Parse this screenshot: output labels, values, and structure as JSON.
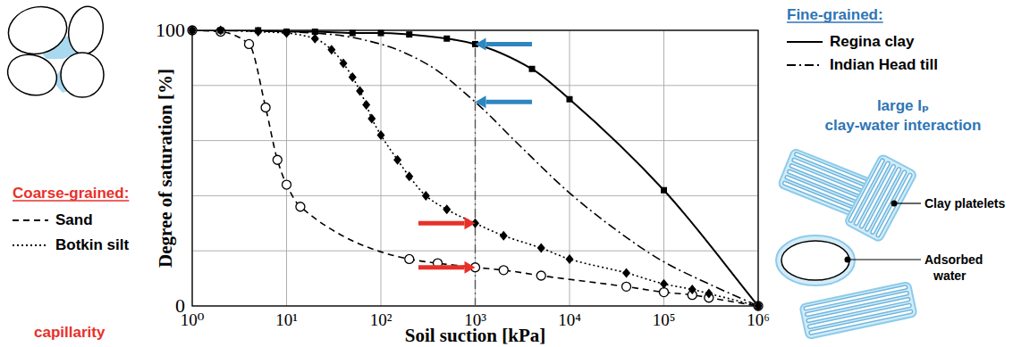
{
  "chart_data": {
    "type": "line",
    "x_label": "Soil suction [kPa]",
    "y_label": "Degree of saturation [%]",
    "log": "x",
    "grid": true,
    "xlim": [
      1,
      1000000
    ],
    "ylim": [
      0,
      100
    ],
    "xticks": [
      {
        "value": 1,
        "label": "10⁰"
      },
      {
        "value": 10,
        "label": "10¹"
      },
      {
        "value": 100,
        "label": "10²"
      },
      {
        "value": 1000,
        "label": "10³"
      },
      {
        "value": 10000,
        "label": "10⁴"
      },
      {
        "value": 100000,
        "label": "10⁵"
      },
      {
        "value": 1000000,
        "label": "10⁶"
      }
    ],
    "yticks": [
      0,
      {
        "value": 20,
        "label": null
      },
      {
        "value": 40,
        "label": null
      },
      {
        "value": 60,
        "label": null
      },
      {
        "value": 80,
        "label": null
      },
      100
    ],
    "series": [
      {
        "name": "Sand",
        "color": "#000000",
        "line_style": "dashed",
        "marker": "circle-open",
        "x": [
          1,
          2,
          4,
          6,
          8,
          10,
          14,
          200,
          400,
          1000,
          2000,
          5000,
          40000,
          100000,
          200000,
          300000,
          1000000
        ],
        "values": [
          100,
          99.5,
          95,
          72,
          53,
          44,
          36,
          17,
          15.5,
          14,
          13,
          11,
          7,
          5,
          4,
          3,
          0
        ]
      },
      {
        "name": "Botkin silt",
        "color": "#000000",
        "line_style": "dotted",
        "marker": "diamond",
        "x": [
          1,
          2,
          5,
          10,
          20,
          30,
          40,
          50,
          60,
          70,
          80,
          100,
          150,
          200,
          300,
          500,
          1000,
          2000,
          5000,
          10000,
          40000,
          100000,
          200000,
          300000,
          1000000
        ],
        "values": [
          100,
          100,
          99.5,
          99,
          97,
          93,
          88,
          83,
          78,
          73,
          68,
          62,
          53,
          47,
          40,
          35,
          30,
          25.5,
          21,
          17,
          12,
          8,
          6,
          4.5,
          0
        ]
      },
      {
        "name": "Regina clay",
        "color": "#000000",
        "line_style": "solid",
        "marker": "square",
        "x": [
          1,
          2,
          5,
          10,
          20,
          50,
          100,
          200,
          500,
          1000,
          4000,
          10000,
          100000,
          1000000
        ],
        "values": [
          100,
          100,
          100,
          99.5,
          99.5,
          99,
          99,
          98.5,
          97,
          95,
          86,
          75,
          42,
          0
        ]
      },
      {
        "name": "Indian Head till",
        "color": "#000000",
        "line_style": "dashdot",
        "marker": "none",
        "x": [
          1,
          10,
          30,
          100,
          300,
          1000,
          3000,
          10000,
          30000,
          100000,
          300000,
          1000000
        ],
        "values": [
          100,
          99.5,
          98.5,
          95,
          88,
          74,
          58,
          41,
          28,
          16,
          8,
          0
        ]
      }
    ],
    "legend_groups": [
      {
        "title": "Coarse-grained:",
        "color": "#e8302a",
        "series": [
          "Sand",
          "Botkin silt"
        ],
        "note": [
          "capillarity"
        ]
      },
      {
        "title": "Fine-grained:",
        "color": "#2e75b6",
        "series": [
          "Regina clay",
          "Indian Head till"
        ],
        "note": [
          "large Iₚ",
          "clay-water interaction"
        ]
      }
    ],
    "reference_line": {
      "x": 1000,
      "line_style": "dashdot"
    },
    "arrows": [
      {
        "x": 1000,
        "y": 95,
        "from_x": 4000,
        "color": "#2e86c1"
      },
      {
        "x": 1000,
        "y": 74,
        "from_x": 4000,
        "color": "#2e86c1"
      },
      {
        "x": 1000,
        "y": 30,
        "from_x": 250,
        "color": "#e8302a"
      },
      {
        "x": 1000,
        "y": 14,
        "from_x": 250,
        "color": "#e8302a"
      }
    ],
    "sketch_labels": [
      "Clay platelets",
      "Adsorbed water"
    ]
  }
}
